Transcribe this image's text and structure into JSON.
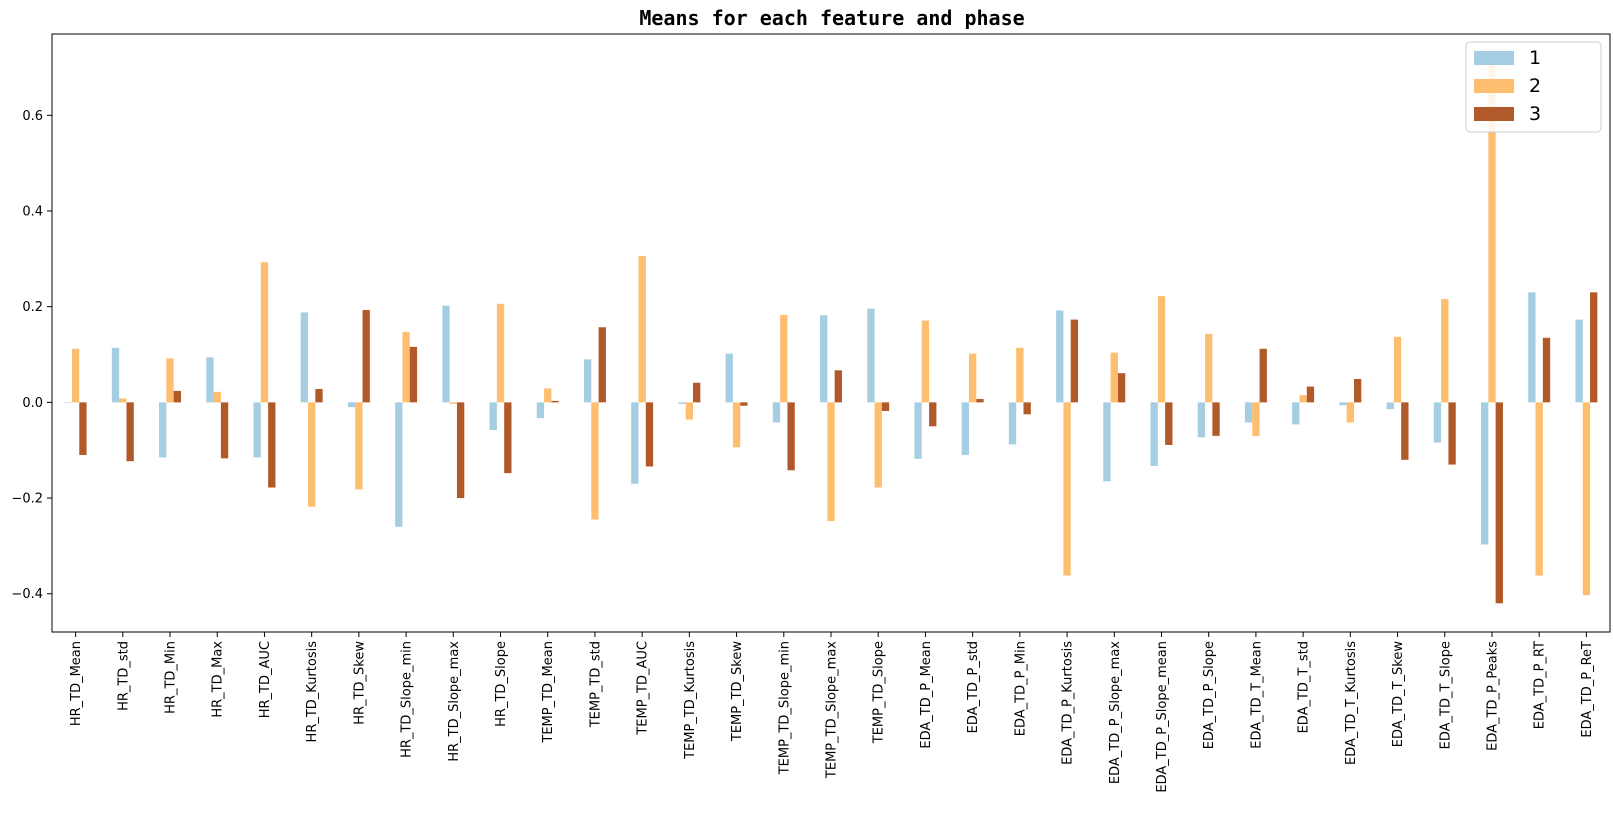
{
  "chart_data": {
    "type": "bar",
    "title": "Means for each feature and phase",
    "xlabel": "",
    "ylabel": "",
    "ylim": [
      -0.48,
      0.77
    ],
    "yticks": [
      -0.4,
      -0.2,
      0.0,
      0.2,
      0.4,
      0.6
    ],
    "ytick_labels": [
      "−0.4",
      "−0.2",
      "0.0",
      "0.2",
      "0.4",
      "0.6"
    ],
    "grid": false,
    "legend_position": "top-right",
    "categories": [
      "HR_TD_Mean",
      "HR_TD_std",
      "HR_TD_Min",
      "HR_TD_Max",
      "HR_TD_AUC",
      "HR_TD_Kurtosis",
      "HR_TD_Skew",
      "HR_TD_Slope_min",
      "HR_TD_Slope_max",
      "HR_TD_Slope",
      "TEMP_TD_Mean",
      "TEMP_TD_std",
      "TEMP_TD_AUC",
      "TEMP_TD_Kurtosis",
      "TEMP_TD_Skew",
      "TEMP_TD_Slope_min",
      "TEMP_TD_Slope_max",
      "TEMP_TD_Slope",
      "EDA_TD_P_Mean",
      "EDA_TD_P_std",
      "EDA_TD_P_Min",
      "EDA_TD_P_Kurtosis",
      "EDA_TD_P_Slope_max",
      "EDA_TD_P_Slope_mean",
      "EDA_TD_P_Slope",
      "EDA_TD_T_Mean",
      "EDA_TD_T_std",
      "EDA_TD_T_Kurtosis",
      "EDA_TD_T_Skew",
      "EDA_TD_T_Slope",
      "EDA_TD_P_Peaks",
      "EDA_TD_P_RT",
      "EDA_TD_P_ReT"
    ],
    "series": [
      {
        "name": "1",
        "color": "#a6cee3",
        "values": [
          0.0,
          0.114,
          -0.115,
          0.094,
          -0.115,
          0.188,
          -0.01,
          -0.26,
          0.202,
          -0.058,
          -0.033,
          0.09,
          -0.17,
          -0.003,
          0.102,
          -0.042,
          0.182,
          0.196,
          -0.118,
          -0.11,
          -0.088,
          0.192,
          -0.165,
          -0.133,
          -0.073,
          -0.042,
          -0.046,
          -0.006,
          -0.014,
          -0.084,
          -0.297,
          0.23,
          0.173
        ]
      },
      {
        "name": "2",
        "color": "#fdbf6f",
        "values": [
          0.112,
          0.008,
          0.092,
          0.022,
          0.293,
          -0.218,
          -0.182,
          0.147,
          -0.003,
          0.206,
          0.029,
          -0.245,
          0.306,
          -0.036,
          -0.094,
          0.183,
          -0.248,
          -0.178,
          0.171,
          0.102,
          0.114,
          -0.362,
          0.104,
          0.222,
          0.143,
          -0.07,
          0.015,
          -0.042,
          0.137,
          0.216,
          0.718,
          -0.362,
          -0.403
        ]
      },
      {
        "name": "3",
        "color": "#b15928",
        "values": [
          -0.11,
          -0.123,
          0.024,
          -0.117,
          -0.178,
          0.028,
          0.193,
          0.116,
          -0.2,
          -0.148,
          0.003,
          0.157,
          -0.134,
          0.041,
          -0.007,
          -0.142,
          0.067,
          -0.018,
          -0.05,
          0.007,
          -0.025,
          0.173,
          0.061,
          -0.089,
          -0.07,
          0.112,
          0.033,
          0.049,
          -0.12,
          -0.13,
          -0.42,
          0.135,
          0.23
        ]
      }
    ]
  }
}
